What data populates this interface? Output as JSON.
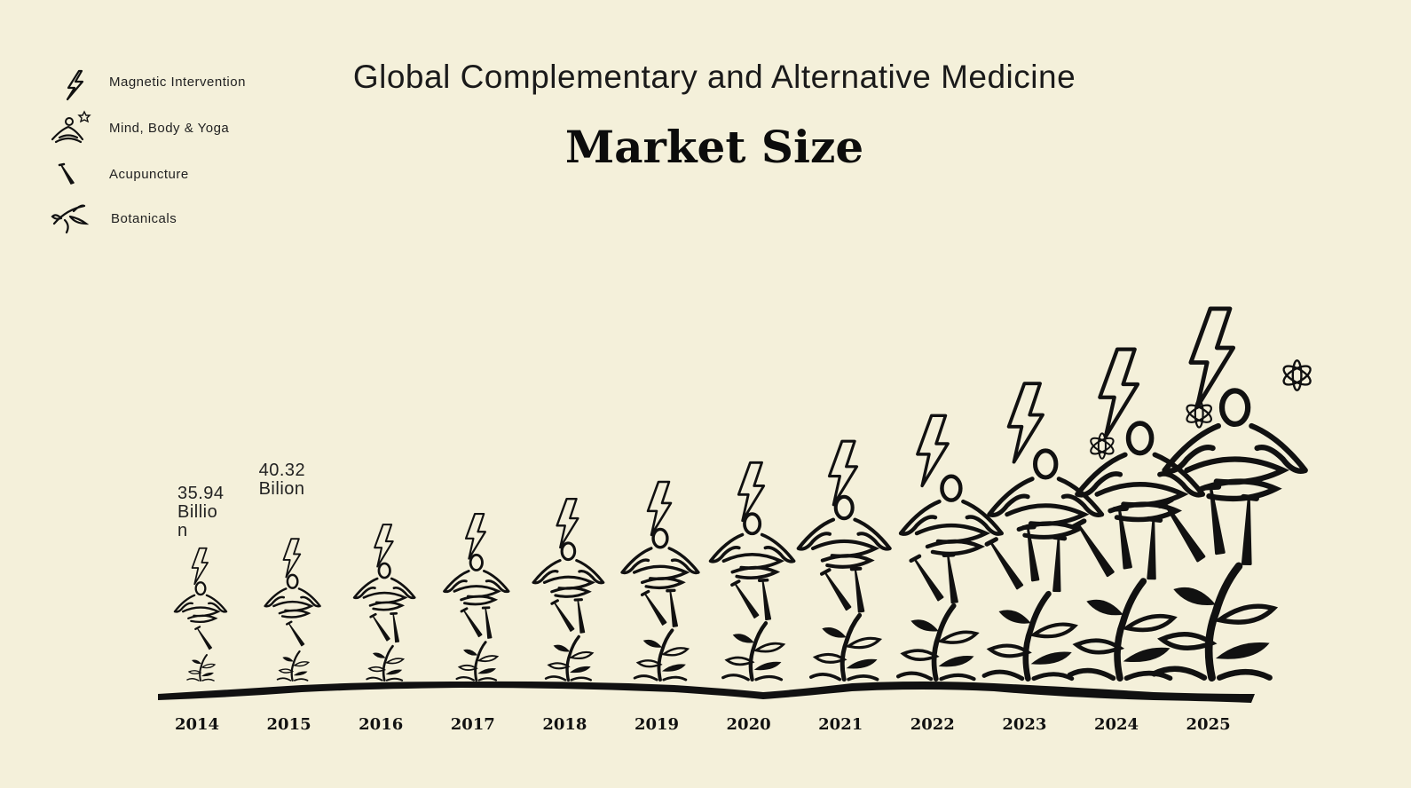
{
  "title": "Global Complementary and Alternative Medicine",
  "subtitle": "Market Size",
  "legend": [
    {
      "label": "Magnetic Intervention",
      "icon": "lightning-bolt-icon"
    },
    {
      "label": "Mind, Body & Yoga",
      "icon": "meditating-person-icon"
    },
    {
      "label": "Acupuncture",
      "icon": "needle-icon"
    },
    {
      "label": "Botanicals",
      "icon": "plant-icon"
    }
  ],
  "colors": {
    "background": "#f4f0da",
    "ink": "#111111"
  },
  "chart_data": {
    "type": "bar",
    "title": "Global Complementary and Alternative Medicine",
    "subtitle": "Market Size",
    "categories": [
      "2014",
      "2015",
      "2016",
      "2017",
      "2018",
      "2019",
      "2020",
      "2021",
      "2022",
      "2023",
      "2024",
      "2025"
    ],
    "series": [
      {
        "name": "Magnetic Intervention"
      },
      {
        "name": "Mind, Body & Yoga"
      },
      {
        "name": "Acupuncture"
      },
      {
        "name": "Botanicals"
      }
    ],
    "values": [
      35.94,
      40.32,
      47,
      52,
      59,
      67,
      76,
      86,
      98,
      113,
      129,
      148
    ],
    "data_labels": [
      {
        "category": "2014",
        "lines": [
          "35.94",
          "Billio",
          "n"
        ]
      },
      {
        "category": "2015",
        "lines": [
          "40.32",
          "Bilion"
        ]
      }
    ],
    "grid": false,
    "legend_position": "top-left"
  }
}
